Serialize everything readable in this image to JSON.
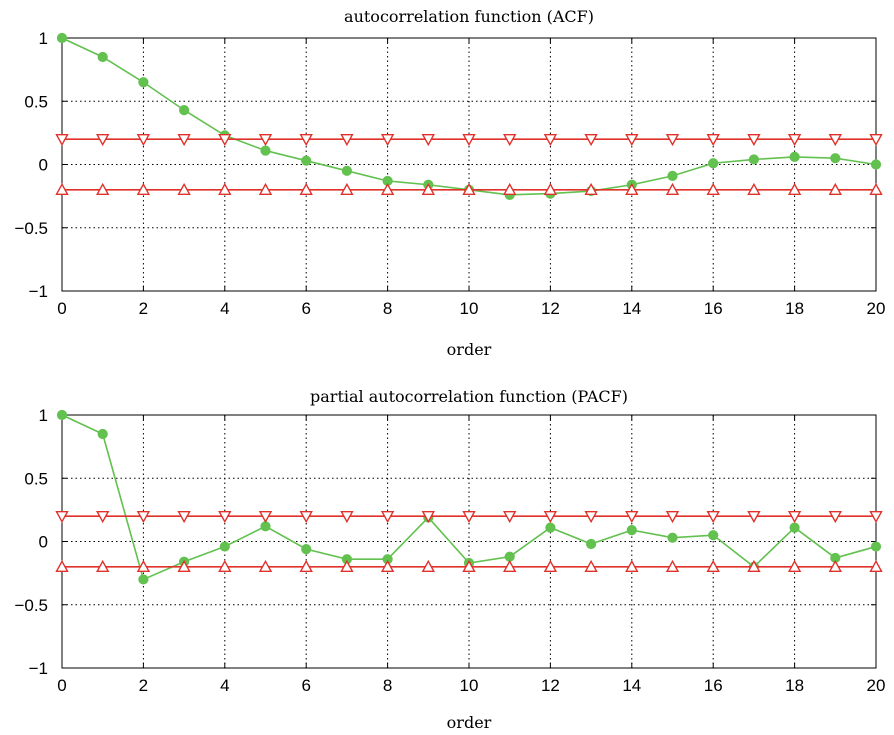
{
  "colors": {
    "series": "#62c14f",
    "bounds": "#e0312b",
    "axis": "#000000"
  },
  "chart_data": [
    {
      "type": "line",
      "title": "autocorrelation function (ACF)",
      "xlabel": "order",
      "ylabel": "",
      "xlim": [
        0,
        20
      ],
      "ylim": [
        -1,
        1
      ],
      "xticks": [
        0,
        2,
        4,
        6,
        8,
        10,
        12,
        14,
        16,
        18,
        20
      ],
      "yticks": [
        -1,
        -0.5,
        0,
        0.5,
        1
      ],
      "ytick_labels": [
        "−1",
        "−0.5",
        "0",
        "0.5",
        "1"
      ],
      "grid": true,
      "x": [
        0,
        1,
        2,
        3,
        4,
        5,
        6,
        7,
        8,
        9,
        10,
        11,
        12,
        13,
        14,
        15,
        16,
        17,
        18,
        19,
        20
      ],
      "series": [
        {
          "role": "main",
          "marker": "circle",
          "values": [
            1.0,
            0.85,
            0.65,
            0.43,
            0.23,
            0.11,
            0.03,
            -0.05,
            -0.13,
            -0.16,
            -0.2,
            -0.24,
            -0.23,
            -0.21,
            -0.16,
            -0.09,
            0.01,
            0.04,
            0.06,
            0.05,
            0.0
          ]
        },
        {
          "role": "upper-bound",
          "marker": "triangle-down",
          "values": [
            0.2,
            0.2,
            0.2,
            0.2,
            0.2,
            0.2,
            0.2,
            0.2,
            0.2,
            0.2,
            0.2,
            0.2,
            0.2,
            0.2,
            0.2,
            0.2,
            0.2,
            0.2,
            0.2,
            0.2,
            0.2
          ]
        },
        {
          "role": "lower-bound",
          "marker": "triangle-up",
          "values": [
            -0.2,
            -0.2,
            -0.2,
            -0.2,
            -0.2,
            -0.2,
            -0.2,
            -0.2,
            -0.2,
            -0.2,
            -0.2,
            -0.2,
            -0.2,
            -0.2,
            -0.2,
            -0.2,
            -0.2,
            -0.2,
            -0.2,
            -0.2,
            -0.2
          ]
        }
      ]
    },
    {
      "type": "line",
      "title": "partial autocorrelation function (PACF)",
      "xlabel": "order",
      "ylabel": "",
      "xlim": [
        0,
        20
      ],
      "ylim": [
        -1,
        1
      ],
      "xticks": [
        0,
        2,
        4,
        6,
        8,
        10,
        12,
        14,
        16,
        18,
        20
      ],
      "yticks": [
        -1,
        -0.5,
        0,
        0.5,
        1
      ],
      "ytick_labels": [
        "−1",
        "−0.5",
        "0",
        "0.5",
        "1"
      ],
      "grid": true,
      "x": [
        0,
        1,
        2,
        3,
        4,
        5,
        6,
        7,
        8,
        9,
        10,
        11,
        12,
        13,
        14,
        15,
        16,
        17,
        18,
        19,
        20
      ],
      "series": [
        {
          "role": "main",
          "marker": "circle",
          "values": [
            1.0,
            0.85,
            -0.3,
            -0.16,
            -0.04,
            0.12,
            -0.06,
            -0.14,
            -0.14,
            0.19,
            -0.17,
            -0.12,
            0.11,
            -0.02,
            0.09,
            0.03,
            0.05,
            -0.2,
            0.11,
            -0.13,
            -0.04
          ]
        },
        {
          "role": "upper-bound",
          "marker": "triangle-down",
          "values": [
            0.2,
            0.2,
            0.2,
            0.2,
            0.2,
            0.2,
            0.2,
            0.2,
            0.2,
            0.2,
            0.2,
            0.2,
            0.2,
            0.2,
            0.2,
            0.2,
            0.2,
            0.2,
            0.2,
            0.2,
            0.2
          ]
        },
        {
          "role": "lower-bound",
          "marker": "triangle-up",
          "values": [
            -0.2,
            -0.2,
            -0.2,
            -0.2,
            -0.2,
            -0.2,
            -0.2,
            -0.2,
            -0.2,
            -0.2,
            -0.2,
            -0.2,
            -0.2,
            -0.2,
            -0.2,
            -0.2,
            -0.2,
            -0.2,
            -0.2,
            -0.2,
            -0.2
          ]
        }
      ]
    }
  ]
}
